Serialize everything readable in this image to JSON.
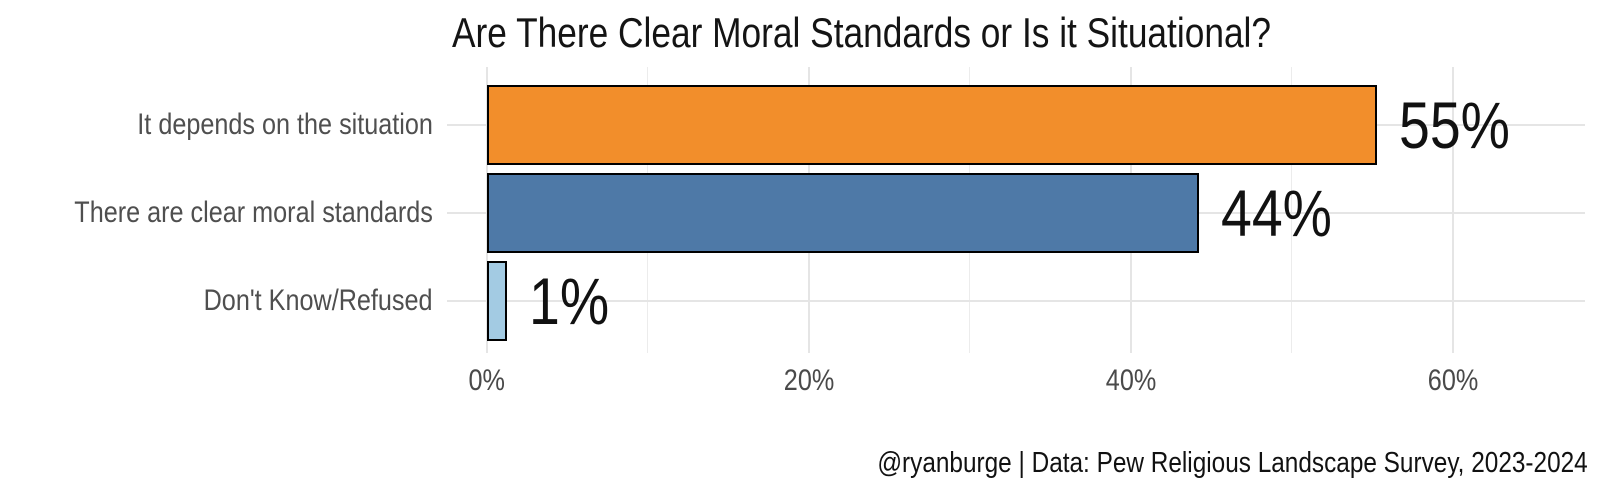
{
  "title": "Are There Clear Moral Standards or Is it Situational?",
  "caption": "@ryanburge | Data: Pew Religious Landscape Survey, 2023-2024",
  "chart_data": {
    "type": "bar",
    "orientation": "horizontal",
    "title": "Are There Clear Moral Standards or Is it Situational?",
    "caption": "@ryanburge | Data: Pew Religious Landscape Survey, 2023-2024",
    "categories": [
      "It depends on the situation",
      "There are clear moral standards",
      "Don't Know/Refused"
    ],
    "values": [
      55,
      44,
      1
    ],
    "value_labels": [
      "55%",
      "44%",
      "1%"
    ],
    "bar_colors": [
      "#F28E2B",
      "#4E79A7",
      "#A3CBE3"
    ],
    "bar_border_color": "#000000",
    "xlim": [
      0,
      60
    ],
    "x_major_ticks": [
      0,
      20,
      40,
      60
    ],
    "x_tick_labels": [
      "0%",
      "20%",
      "40%",
      "60%"
    ],
    "x_minor_step": 10,
    "grid": true,
    "legend": false,
    "background": "#FFFFFF",
    "grid_color": "#E5E5E5",
    "category_label_color": "#4F4F4F",
    "value_label_color": "#111111"
  }
}
